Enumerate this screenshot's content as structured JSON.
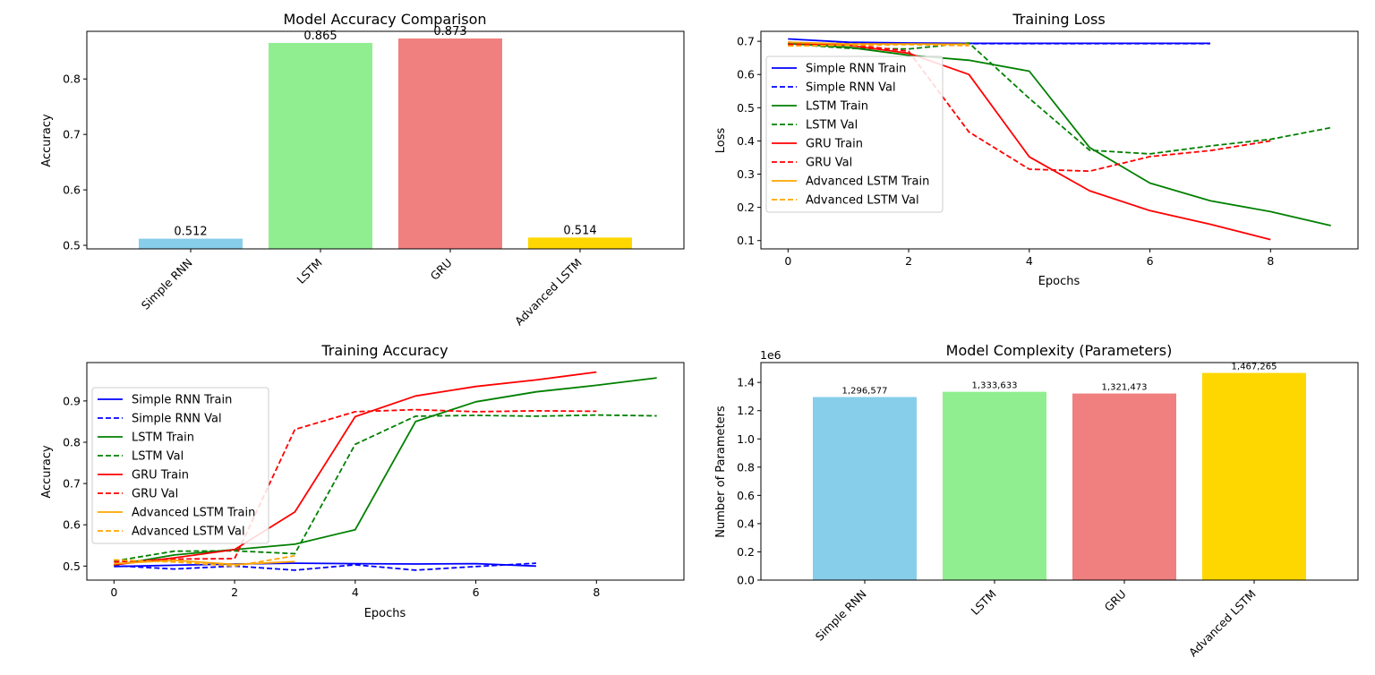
{
  "chart_data": [
    {
      "id": "acc_cmp",
      "type": "bar",
      "title": "Model Accuracy Comparison",
      "xlabel": "",
      "ylabel": "Accuracy",
      "categories": [
        "Simple RNN",
        "LSTM",
        "GRU",
        "Advanced LSTM"
      ],
      "values": [
        0.512,
        0.865,
        0.873,
        0.514
      ],
      "value_labels": [
        "0.512",
        "0.865",
        "0.873",
        "0.514"
      ],
      "colors": [
        "#87CEEB",
        "#90EE90",
        "#F08080",
        "#FFD700"
      ],
      "ylim": [
        0.4936,
        0.8859
      ],
      "yticks": [
        0.5,
        0.6,
        0.7,
        0.8
      ],
      "ytick_labels": [
        "0.5",
        "0.6",
        "0.7",
        "0.8"
      ]
    },
    {
      "id": "train_loss",
      "type": "line",
      "title": "Training Loss",
      "xlabel": "Epochs",
      "ylabel": "Loss",
      "xlim": [
        -0.45,
        9.45
      ],
      "ylim": [
        0.075,
        0.73
      ],
      "xticks": [
        0,
        2,
        4,
        6,
        8
      ],
      "xtick_labels": [
        "0",
        "2",
        "4",
        "6",
        "8"
      ],
      "yticks": [
        0.1,
        0.2,
        0.3,
        0.4,
        0.5,
        0.6,
        0.7
      ],
      "ytick_labels": [
        "0.1",
        "0.2",
        "0.3",
        "0.4",
        "0.5",
        "0.6",
        "0.7"
      ],
      "legend": "upper-left",
      "series": [
        {
          "name": "Simple RNN Train",
          "color": "#0000ff",
          "dashed": false,
          "x": [
            0,
            1,
            2,
            3,
            4,
            5,
            6,
            7
          ],
          "y": [
            0.707,
            0.697,
            0.695,
            0.694,
            0.694,
            0.694,
            0.694,
            0.694
          ]
        },
        {
          "name": "Simple RNN Val",
          "color": "#0000ff",
          "dashed": true,
          "x": [
            0,
            1,
            2,
            3,
            4,
            5,
            6,
            7
          ],
          "y": [
            0.693,
            0.693,
            0.693,
            0.693,
            0.693,
            0.693,
            0.693,
            0.693
          ]
        },
        {
          "name": "LSTM Train",
          "color": "#008000",
          "dashed": false,
          "x": [
            0,
            1,
            2,
            3,
            4,
            5,
            6,
            7,
            8,
            9
          ],
          "y": [
            0.693,
            0.682,
            0.658,
            0.643,
            0.61,
            0.38,
            0.273,
            0.22,
            0.187,
            0.145
          ]
        },
        {
          "name": "LSTM Val",
          "color": "#008000",
          "dashed": true,
          "x": [
            0,
            1,
            2,
            3,
            4,
            5,
            6,
            7,
            8,
            9
          ],
          "y": [
            0.692,
            0.679,
            0.677,
            0.695,
            0.528,
            0.372,
            0.361,
            0.385,
            0.405,
            0.44
          ]
        },
        {
          "name": "GRU Train",
          "color": "#ff0000",
          "dashed": false,
          "x": [
            0,
            1,
            2,
            3,
            4,
            5,
            6,
            7,
            8
          ],
          "y": [
            0.697,
            0.688,
            0.664,
            0.6,
            0.352,
            0.25,
            0.19,
            0.149,
            0.103
          ]
        },
        {
          "name": "GRU Val",
          "color": "#ff0000",
          "dashed": true,
          "x": [
            0,
            1,
            2,
            3,
            4,
            5,
            6,
            7,
            8
          ],
          "y": [
            0.69,
            0.691,
            0.67,
            0.427,
            0.315,
            0.309,
            0.353,
            0.371,
            0.4
          ]
        },
        {
          "name": "Advanced LSTM Train",
          "color": "#ffa500",
          "dashed": false,
          "x": [
            0,
            1,
            2,
            3
          ],
          "y": [
            0.697,
            0.692,
            0.692,
            0.691
          ]
        },
        {
          "name": "Advanced LSTM Val",
          "color": "#ffa500",
          "dashed": true,
          "x": [
            0,
            1,
            2,
            3
          ],
          "y": [
            0.686,
            0.688,
            0.69,
            0.687
          ]
        }
      ]
    },
    {
      "id": "train_acc",
      "type": "line",
      "title": "Training Accuracy",
      "xlabel": "Epochs",
      "ylabel": "Accuracy",
      "xlim": [
        -0.45,
        9.45
      ],
      "ylim": [
        0.466,
        0.993
      ],
      "xticks": [
        0,
        2,
        4,
        6,
        8
      ],
      "xtick_labels": [
        "0",
        "2",
        "4",
        "6",
        "8"
      ],
      "yticks": [
        0.5,
        0.6,
        0.7,
        0.8,
        0.9
      ],
      "ytick_labels": [
        "0.5",
        "0.6",
        "0.7",
        "0.8",
        "0.9"
      ],
      "legend": "upper-left",
      "series": [
        {
          "name": "Simple RNN Train",
          "color": "#0000ff",
          "dashed": false,
          "x": [
            0,
            1,
            2,
            3,
            4,
            5,
            6,
            7
          ],
          "y": [
            0.499,
            0.502,
            0.505,
            0.507,
            0.506,
            0.505,
            0.506,
            0.5
          ]
        },
        {
          "name": "Simple RNN Val",
          "color": "#0000ff",
          "dashed": true,
          "x": [
            0,
            1,
            2,
            3,
            4,
            5,
            6,
            7
          ],
          "y": [
            0.501,
            0.493,
            0.5,
            0.49,
            0.503,
            0.49,
            0.499,
            0.507
          ]
        },
        {
          "name": "LSTM Train",
          "color": "#008000",
          "dashed": false,
          "x": [
            0,
            1,
            2,
            3,
            4,
            5,
            6,
            7,
            8,
            9
          ],
          "y": [
            0.502,
            0.527,
            0.54,
            0.553,
            0.588,
            0.85,
            0.898,
            0.922,
            0.938,
            0.956
          ]
        },
        {
          "name": "LSTM Val",
          "color": "#008000",
          "dashed": true,
          "x": [
            0,
            1,
            2,
            3,
            4,
            5,
            6,
            7,
            8,
            9
          ],
          "y": [
            0.512,
            0.536,
            0.537,
            0.53,
            0.795,
            0.863,
            0.865,
            0.863,
            0.866,
            0.864
          ]
        },
        {
          "name": "GRU Train",
          "color": "#ff0000",
          "dashed": false,
          "x": [
            0,
            1,
            2,
            3,
            4,
            5,
            6,
            7,
            8
          ],
          "y": [
            0.503,
            0.52,
            0.54,
            0.631,
            0.862,
            0.912,
            0.935,
            0.951,
            0.97
          ]
        },
        {
          "name": "GRU Val",
          "color": "#ff0000",
          "dashed": true,
          "x": [
            0,
            1,
            2,
            3,
            4,
            5,
            6,
            7,
            8
          ],
          "y": [
            0.51,
            0.517,
            0.518,
            0.831,
            0.874,
            0.879,
            0.874,
            0.876,
            0.875
          ]
        },
        {
          "name": "Advanced LSTM Train",
          "color": "#ffa500",
          "dashed": false,
          "x": [
            0,
            1,
            2,
            3
          ],
          "y": [
            0.506,
            0.514,
            0.504,
            0.511
          ]
        },
        {
          "name": "Advanced LSTM Val",
          "color": "#ffa500",
          "dashed": true,
          "x": [
            0,
            1,
            2,
            3
          ],
          "y": [
            0.515,
            0.51,
            0.5,
            0.525
          ]
        }
      ]
    },
    {
      "id": "complexity",
      "type": "bar",
      "title": "Model Complexity (Parameters)",
      "xlabel": "",
      "ylabel": "Number of Parameters",
      "scale_label": "1e6",
      "categories": [
        "Simple RNN",
        "LSTM",
        "GRU",
        "Advanced LSTM"
      ],
      "values": [
        1296577,
        1333633,
        1321473,
        1467265
      ],
      "value_labels": [
        "1,296,577",
        "1,333,633",
        "1,321,473",
        "1,467,265"
      ],
      "colors": [
        "#87CEEB",
        "#90EE90",
        "#F08080",
        "#FFD700"
      ],
      "ylim": [
        0,
        1540628
      ],
      "yticks": [
        0,
        200000,
        400000,
        600000,
        800000,
        1000000,
        1200000,
        1400000
      ],
      "ytick_labels": [
        "0.0",
        "0.2",
        "0.4",
        "0.6",
        "0.8",
        "1.0",
        "1.2",
        "1.4"
      ]
    }
  ]
}
